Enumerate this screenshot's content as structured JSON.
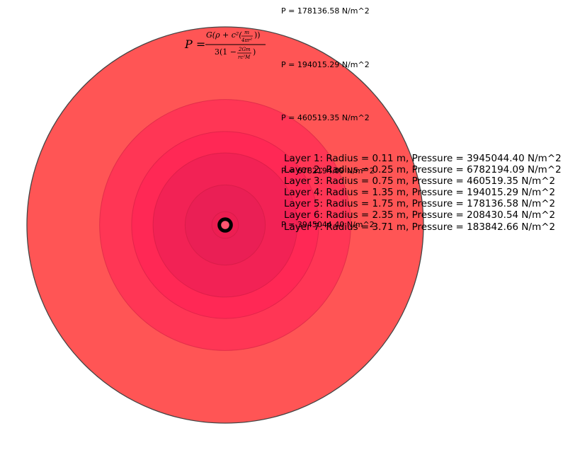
{
  "formula": {
    "lhs": "P =",
    "numerator": "G(ρ + c²(",
    "num_frac_top": "m",
    "num_frac_bottom": "4πr²",
    "num_close": "))",
    "denominator": "3(1 − ",
    "den_frac_top": "2Gm",
    "den_frac_bottom": "rc²M",
    "den_close": ")"
  },
  "chart_data": {
    "type": "concentric-circles",
    "unit_radius": "m",
    "unit_pressure": "N/m^2",
    "layers": [
      {
        "layer": 1,
        "radius": 0.11,
        "pressure": 3945044.4,
        "color": "#000000"
      },
      {
        "layer": 2,
        "radius": 0.25,
        "pressure": 6782194.09,
        "color": "#ec1e50"
      },
      {
        "layer": 3,
        "radius": 0.75,
        "pressure": 460519.35,
        "color": "#e41e55"
      },
      {
        "layer": 4,
        "radius": 1.35,
        "pressure": 194015.29,
        "color": "#e81e55"
      },
      {
        "layer": 5,
        "radius": 1.75,
        "pressure": 178136.58,
        "color": "#ff1e55"
      },
      {
        "layer": 6,
        "radius": 2.35,
        "pressure": 208430.54,
        "color": "#ff1e55"
      },
      {
        "layer": 7,
        "radius": 3.71,
        "pressure": 183842.66,
        "color": "#ff5555"
      }
    ],
    "pressure_labels": [
      "P = 178136.58 N/m^2",
      "P = 194015.29 N/m^2",
      "P = 460519.35 N/m^2",
      "P = 6782194.09 N/m^2",
      "P = 3945044.40 N/m^2"
    ],
    "legend_lines": [
      "Layer 1: Radius = 0.11 m, Pressure = 3945044.40 N/m^2",
      "Layer 2: Radius = 0.25 m, Pressure = 6782194.09 N/m^2",
      "Layer 3: Radius = 0.75 m, Pressure = 460519.35 N/m^2",
      "Layer 4: Radius = 1.35 m, Pressure = 194015.29 N/m^2",
      "Layer 5: Radius = 1.75 m, Pressure = 178136.58 N/m^2",
      "Layer 6: Radius = 2.35 m, Pressure = 208430.54 N/m^2",
      "Layer 7: Radius = 3.71 m, Pressure = 183842.66 N/m^2"
    ]
  }
}
